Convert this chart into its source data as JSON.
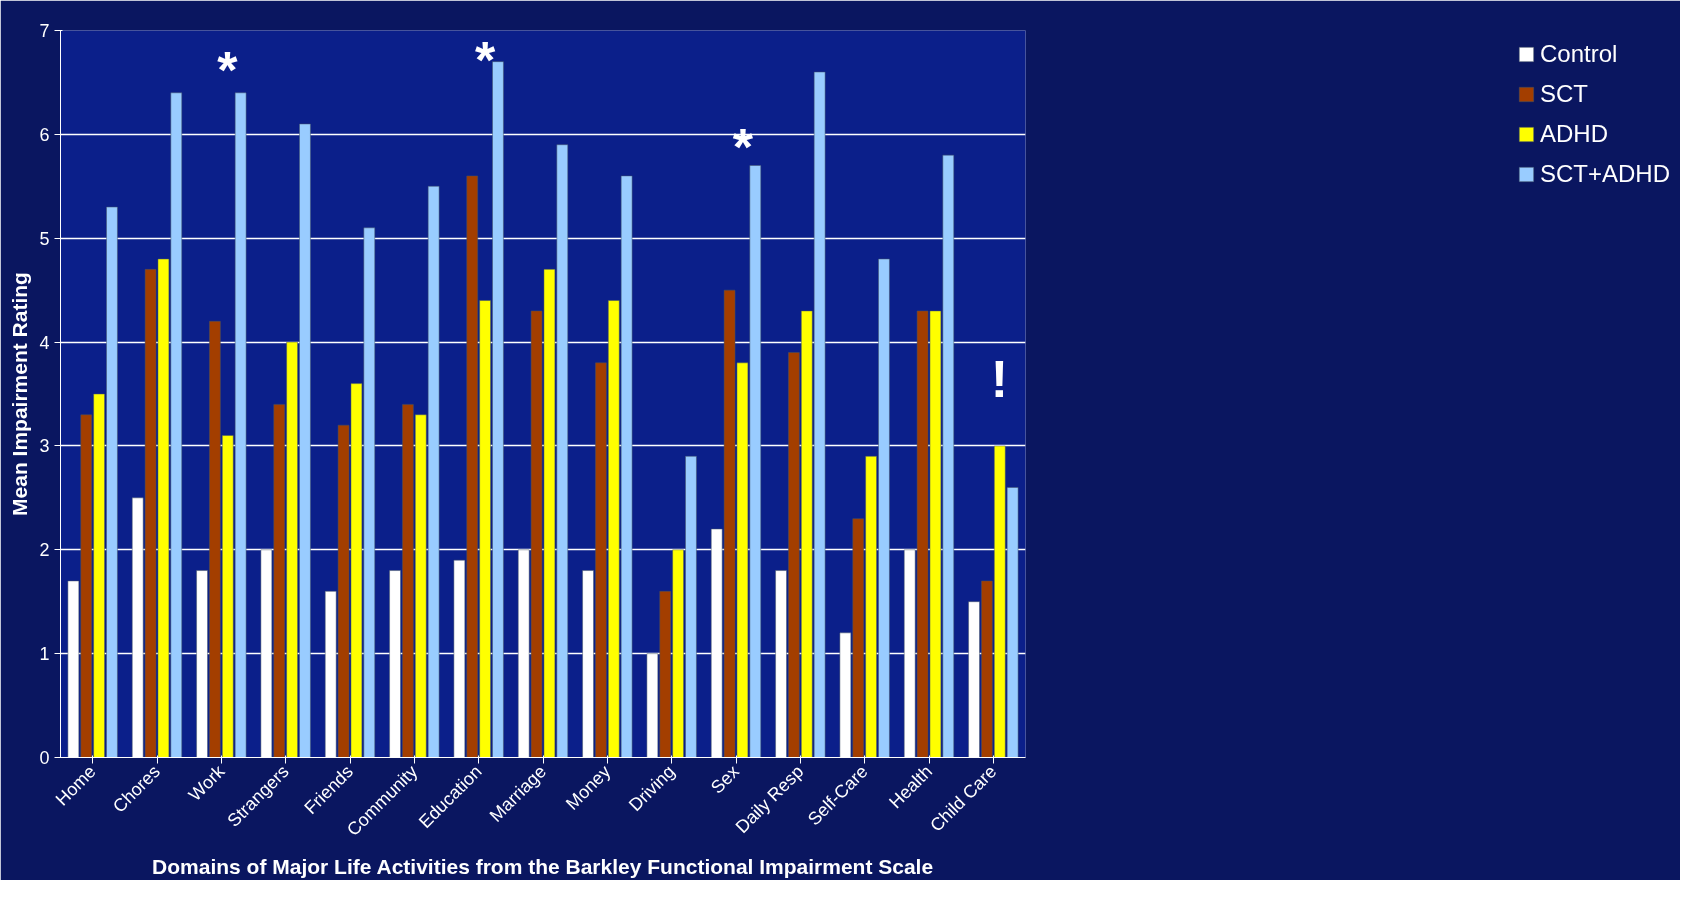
{
  "chart_data": {
    "type": "bar",
    "ylabel": "Mean Impairment Rating",
    "xlabel": "Domains of Major Life Activities from the Barkley Functional Impairment Scale",
    "categories": [
      "Home",
      "Chores",
      "Work",
      "Strangers",
      "Friends",
      "Community",
      "Education",
      "Marriage",
      "Money",
      "Driving",
      "Sex",
      "Daily Resp",
      "Self-Care",
      "Health",
      "Child Care"
    ],
    "series": [
      {
        "name": "Control",
        "color": "#ffffff",
        "values": [
          1.7,
          2.5,
          1.8,
          2.0,
          1.6,
          1.8,
          1.9,
          2.0,
          1.8,
          1.0,
          2.2,
          1.8,
          1.2,
          2.0,
          1.5
        ]
      },
      {
        "name": "SCT",
        "color": "#a33e00",
        "values": [
          3.3,
          4.7,
          4.2,
          3.4,
          3.2,
          3.4,
          5.6,
          4.3,
          3.8,
          1.6,
          4.5,
          3.9,
          2.3,
          4.3,
          1.7
        ]
      },
      {
        "name": "ADHD",
        "color": "#ffff00",
        "values": [
          3.5,
          4.8,
          3.1,
          4.0,
          3.6,
          3.3,
          4.4,
          4.7,
          4.4,
          2.0,
          3.8,
          4.3,
          2.9,
          4.3,
          3.0
        ]
      },
      {
        "name": "SCT+ADHD",
        "color": "#99ccff",
        "values": [
          5.3,
          6.4,
          6.4,
          6.1,
          5.1,
          5.5,
          6.7,
          5.9,
          5.6,
          2.9,
          5.7,
          6.6,
          4.8,
          5.8,
          2.6
        ]
      }
    ],
    "ylim": [
      0,
      7
    ],
    "yticks": [
      0,
      1,
      2,
      3,
      4,
      5,
      6,
      7
    ],
    "grid": "y",
    "legend": "right",
    "annotations": [
      "*",
      "*",
      "*",
      "!"
    ]
  }
}
